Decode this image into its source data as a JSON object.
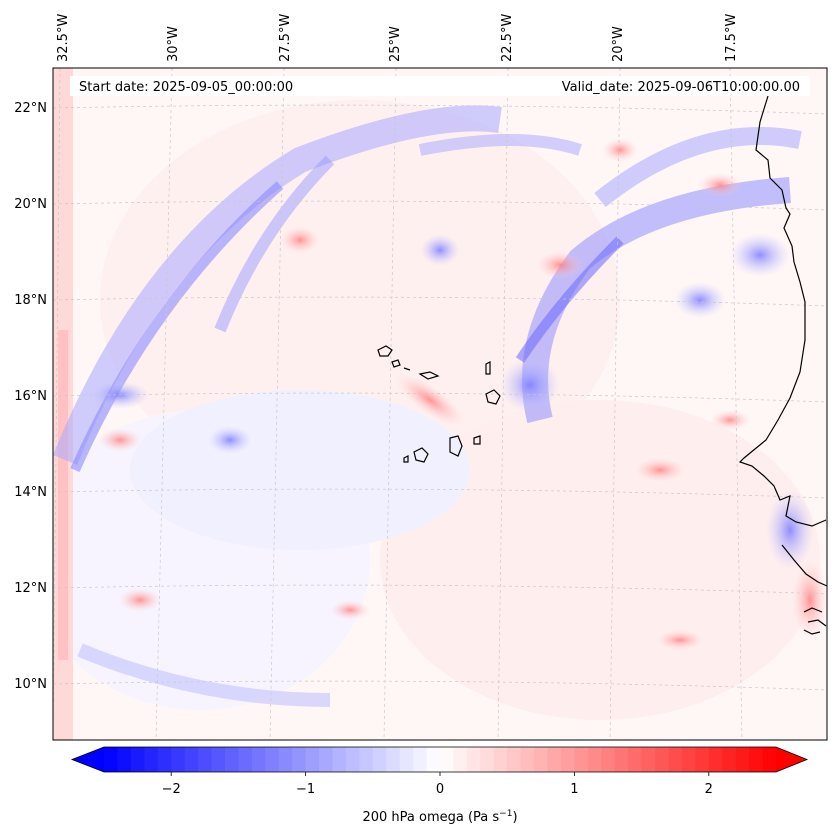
{
  "map": {
    "start_label": "Start date: 2025-09-05_00:00:00",
    "valid_label": "Valid_date: 2025-09-06T10:00:00.00",
    "lon_labels": [
      "32.5°W",
      "30°W",
      "27.5°W",
      "25°W",
      "22.5°W",
      "20°W",
      "17.5°W"
    ],
    "lat_labels": [
      "22°N",
      "20°N",
      "18°N",
      "16°N",
      "14°N",
      "12°N",
      "10°N"
    ],
    "extent": {
      "lon_min": -32.6,
      "lon_max": -15.8,
      "lat_min": 8.9,
      "lat_max": 22.8
    },
    "field": "200 hPa omega",
    "coastline_color": "#000000"
  },
  "colorbar": {
    "label_text": "200 hPa omega (Pa s",
    "label_sup": "−1",
    "label_close": ")",
    "ticks": [
      {
        "value": -2,
        "label": "−2"
      },
      {
        "value": -1,
        "label": "−1"
      },
      {
        "value": 0,
        "label": "0"
      },
      {
        "value": 1,
        "label": "1"
      },
      {
        "value": 2,
        "label": "2"
      }
    ],
    "vmin": -2.5,
    "vmax": 2.5,
    "colormap": "bwr",
    "color_low": "#0000ff",
    "color_mid": "#ffffff",
    "color_high": "#ff0000"
  }
}
